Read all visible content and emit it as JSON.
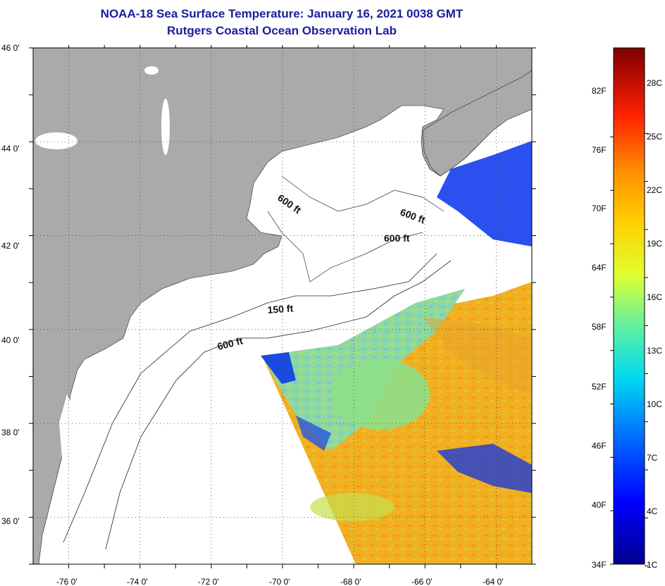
{
  "title": {
    "line1": "NOAA-18 Sea Surface Temperature:  January 16, 2021 0038 GMT",
    "line2": "Rutgers Coastal Ocean Observation Lab"
  },
  "map": {
    "lon_range": [
      -77,
      -63
    ],
    "lat_range": [
      35,
      46
    ],
    "lat_labels": [
      "46 0'",
      "44 0'",
      "42 0'",
      "40 0'",
      "38 0'",
      "36 0'"
    ],
    "lon_labels": [
      "-76 0'",
      "-74 0'",
      "-72 0'",
      "-70 0'",
      "-68 0'",
      "-66 0'",
      "-64 0'"
    ],
    "contour_labels": [
      "600 ft",
      "600 ft",
      "600 ft",
      "150 ft",
      "600 ft"
    ],
    "colors": {
      "land": "#aaaaaa",
      "ocean_no_data": "#ffffff",
      "frame": "#000000"
    }
  },
  "colorbar": {
    "fahrenheit": [
      "82F",
      "76F",
      "70F",
      "64F",
      "58F",
      "52F",
      "46F",
      "40F",
      "34F"
    ],
    "celsius": [
      "28C",
      "25C",
      "22C",
      "19C",
      "16C",
      "13C",
      "10C",
      "7C",
      "4C",
      "1C"
    ],
    "colors": [
      "#7f0000",
      "#ff0000",
      "#ff8000",
      "#ffd000",
      "#e8ff20",
      "#60ff80",
      "#00e8e8",
      "#0080ff",
      "#0000ff",
      "#00007f"
    ]
  }
}
